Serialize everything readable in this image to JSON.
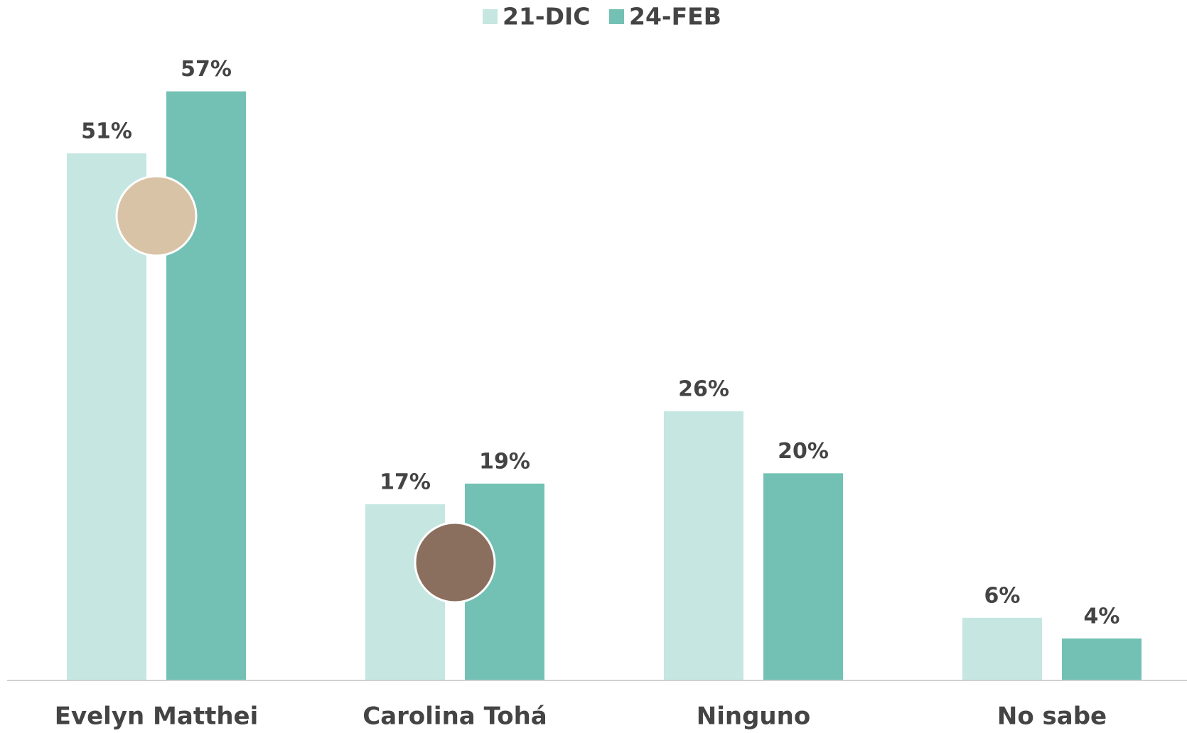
{
  "chart_data": {
    "type": "bar",
    "categories": [
      "Evelyn Matthei",
      "Carolina Tohá",
      "Ninguno",
      "No sabe"
    ],
    "series": [
      {
        "name": "21-DIC",
        "color": "#c5e6e1",
        "values": [
          51,
          17,
          26,
          6
        ],
        "value_labels": [
          "51%",
          "17%",
          "26%",
          "6%"
        ]
      },
      {
        "name": "24-FEB",
        "color": "#72c1b4",
        "values": [
          57,
          19,
          20,
          4
        ],
        "value_labels": [
          "57%",
          "19%",
          "20%",
          "4%"
        ]
      }
    ],
    "ylim": [
      0,
      60
    ],
    "legend": "top"
  }
}
